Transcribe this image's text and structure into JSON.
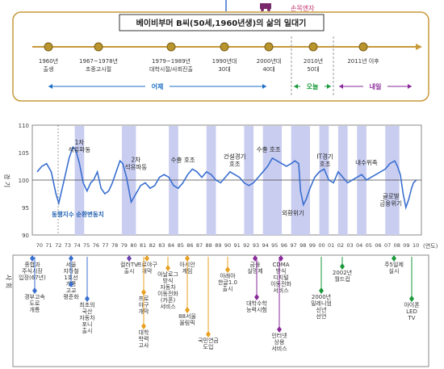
{
  "header": {
    "title": "베이비부머 B씨(50세,1960년생)의 삶의 일대기",
    "tag": "손목엔자",
    "milestones": [
      {
        "period": "1960년",
        "event": "출생"
      },
      {
        "period": "1967~1978년",
        "event": "초중고시절"
      },
      {
        "period": "1979~1989년",
        "event": "대학시절/사회진출"
      },
      {
        "period": "1990년대",
        "event": "30대"
      },
      {
        "period": "2000년대",
        "event": "40대"
      },
      {
        "period": "2010년",
        "event": "50대"
      },
      {
        "period": "2011년 이후",
        "event": ""
      }
    ],
    "eras": [
      {
        "label": "어제",
        "color": "#1f6fc4"
      },
      {
        "label": "오늘",
        "color": "#1a9a3a"
      },
      {
        "label": "내일",
        "color": "#8a2a9a"
      }
    ]
  },
  "chart_data": {
    "type": "line",
    "title": "",
    "ylabel": "경 기",
    "xlabel": "(연도)",
    "ylim": [
      90,
      110
    ],
    "yticks": [
      90,
      95,
      100,
      105,
      110
    ],
    "reference_y": 100,
    "grid": false,
    "x_ticks": [
      "70",
      "71",
      "72",
      "73",
      "74",
      "75",
      "76",
      "77",
      "78",
      "79",
      "80",
      "81",
      "82",
      "83",
      "84",
      "85",
      "86",
      "87",
      "88",
      "89",
      "90",
      "91",
      "92",
      "93",
      "94",
      "95",
      "96",
      "97",
      "98",
      "99",
      "00",
      "01",
      "02",
      "03",
      "04",
      "05",
      "06",
      "07",
      "08",
      "09",
      "10"
    ],
    "x_start": 1970,
    "series": [
      {
        "name": "동행지수 순환변동치",
        "color": "#3a6fd0",
        "x": [
          1970,
          1970.5,
          1971,
          1971.5,
          1972,
          1972.3,
          1972.6,
          1973,
          1973.4,
          1973.8,
          1974.1,
          1974.5,
          1974.9,
          1975.3,
          1975.7,
          1976,
          1976.4,
          1976.8,
          1977.2,
          1977.6,
          1978,
          1978.4,
          1978.8,
          1979.1,
          1979.5,
          1980,
          1980.5,
          1981,
          1981.5,
          1982,
          1982.5,
          1983,
          1983.5,
          1984,
          1984.5,
          1985,
          1985.5,
          1986,
          1986.5,
          1987,
          1987.5,
          1988,
          1988.5,
          1989,
          1989.5,
          1990,
          1990.5,
          1991,
          1991.5,
          1992,
          1992.5,
          1993,
          1993.5,
          1994,
          1994.5,
          1995,
          1995.5,
          1996,
          1996.5,
          1997,
          1997.4,
          1997.8,
          1998,
          1998.3,
          1998.6,
          1999,
          1999.5,
          2000,
          2000.5,
          2001,
          2001.5,
          2002,
          2002.5,
          2003,
          2003.5,
          2004,
          2004.5,
          2005,
          2005.5,
          2006,
          2006.5,
          2007,
          2007.5,
          2008,
          2008.3,
          2008.6,
          2008.9,
          2009.2,
          2009.5,
          2009.8,
          2010,
          2010.3
        ],
        "y": [
          101.5,
          102.5,
          103.0,
          101.5,
          97.5,
          95.8,
          98.0,
          101.0,
          104.0,
          106.0,
          105.5,
          103.0,
          99.5,
          98.0,
          99.5,
          100.0,
          101.5,
          98.5,
          97.5,
          98.0,
          99.5,
          101.5,
          103.5,
          103.0,
          100.5,
          96.0,
          97.5,
          99.0,
          99.5,
          98.5,
          99.0,
          100.5,
          101.0,
          100.5,
          99.0,
          98.5,
          99.5,
          101.0,
          102.0,
          101.5,
          100.5,
          101.5,
          101.0,
          100.0,
          99.5,
          100.5,
          101.5,
          101.0,
          100.5,
          99.5,
          99.0,
          99.5,
          100.5,
          101.5,
          102.5,
          104.0,
          103.5,
          103.0,
          102.5,
          103.0,
          103.5,
          103.0,
          98.0,
          95.5,
          96.5,
          98.5,
          100.5,
          101.5,
          102.0,
          100.0,
          99.5,
          101.5,
          100.5,
          99.5,
          100.0,
          100.5,
          101.0,
          100.0,
          100.5,
          101.0,
          101.5,
          102.0,
          103.0,
          103.5,
          102.5,
          101.0,
          97.5,
          95.0,
          96.5,
          98.5,
          99.5,
          100.0
        ]
      }
    ],
    "shaded_periods": [
      [
        1974,
        1975
      ],
      [
        1979,
        1980.5
      ],
      [
        1984,
        1985
      ],
      [
        1988,
        1989
      ],
      [
        1992,
        1993
      ],
      [
        1994,
        1996
      ],
      [
        1997,
        1999
      ],
      [
        2000,
        2001
      ],
      [
        2002,
        2003
      ],
      [
        2004,
        2005
      ],
      [
        2007,
        2008.5
      ]
    ],
    "annotations": [
      {
        "text": "1차 석유파동",
        "x": 1974.5,
        "y": 106.5
      },
      {
        "text": "2차 석유파동",
        "x": 1980.5,
        "y": 103.3
      },
      {
        "text": "수출 호조",
        "x": 1985.5,
        "y": 103.3
      },
      {
        "text": "건설경기 호조",
        "x": 1991,
        "y": 103.9
      },
      {
        "text": "수출 호조",
        "x": 1994.6,
        "y": 105.2
      },
      {
        "text": "IT경기 호조",
        "x": 2000.6,
        "y": 103.9
      },
      {
        "text": "내수위축",
        "x": 2005,
        "y": 102.8
      },
      {
        "text": "외환위기",
        "x": 1997.2,
        "y": 93.6
      },
      {
        "text": "글로벌 금융위기",
        "x": 2007.6,
        "y": 96.7
      }
    ]
  },
  "events": [
    {
      "text": "종합과 주식시장 입장(67년)",
      "color": "#3a6fd0"
    },
    {
      "text": "경부고속 도로 개통",
      "color": "#3a6fd0"
    },
    {
      "text": "서울 지하철 1호선 개통",
      "color": "#3a6fd0"
    },
    {
      "text": "고교 평준화",
      "color": "#3a6fd0"
    },
    {
      "text": "최초의 국산 자동차 포니 출시",
      "color": "#3a6fd0"
    },
    {
      "text": "컬러TV 출시",
      "color": "#6a3fb0"
    },
    {
      "text": "프로야구 개막",
      "color": "#e8a020"
    },
    {
      "text": "프로 야구 개막",
      "color": "#e8a020"
    },
    {
      "text": "대학 학력 고사",
      "color": "#e8a020"
    },
    {
      "text": "아날로그 방식 자동차 이동전화 (카폰) 서비스",
      "color": "#e8a020"
    },
    {
      "text": "아시안 게임",
      "color": "#e8a020"
    },
    {
      "text": "88서울 올림픽",
      "color": "#e8a020"
    },
    {
      "text": "국민연금 도입",
      "color": "#e8a020"
    },
    {
      "text": "아래아 한글1.0 출시",
      "color": "#e8a020"
    },
    {
      "text": "금융 실명제",
      "color": "#8a2a9a"
    },
    {
      "text": "대학수학 능력시험",
      "color": "#8a2a9a"
    },
    {
      "text": "CDMA 방식 디지털 이동전화 서비스",
      "color": "#8a2a9a"
    },
    {
      "text": "인터넷 상용 서비스",
      "color": "#8a2a9a"
    },
    {
      "text": "2000년 밀레니엄 신년 선언",
      "color": "#1a9a3a"
    },
    {
      "text": "2002년 월드컵",
      "color": "#1a9a3a"
    },
    {
      "text": "주5일제 실시",
      "color": "#1a9a3a"
    },
    {
      "text": "아이폰 LED TV",
      "color": "#1a9a3a"
    }
  ],
  "side_label": "사 회"
}
